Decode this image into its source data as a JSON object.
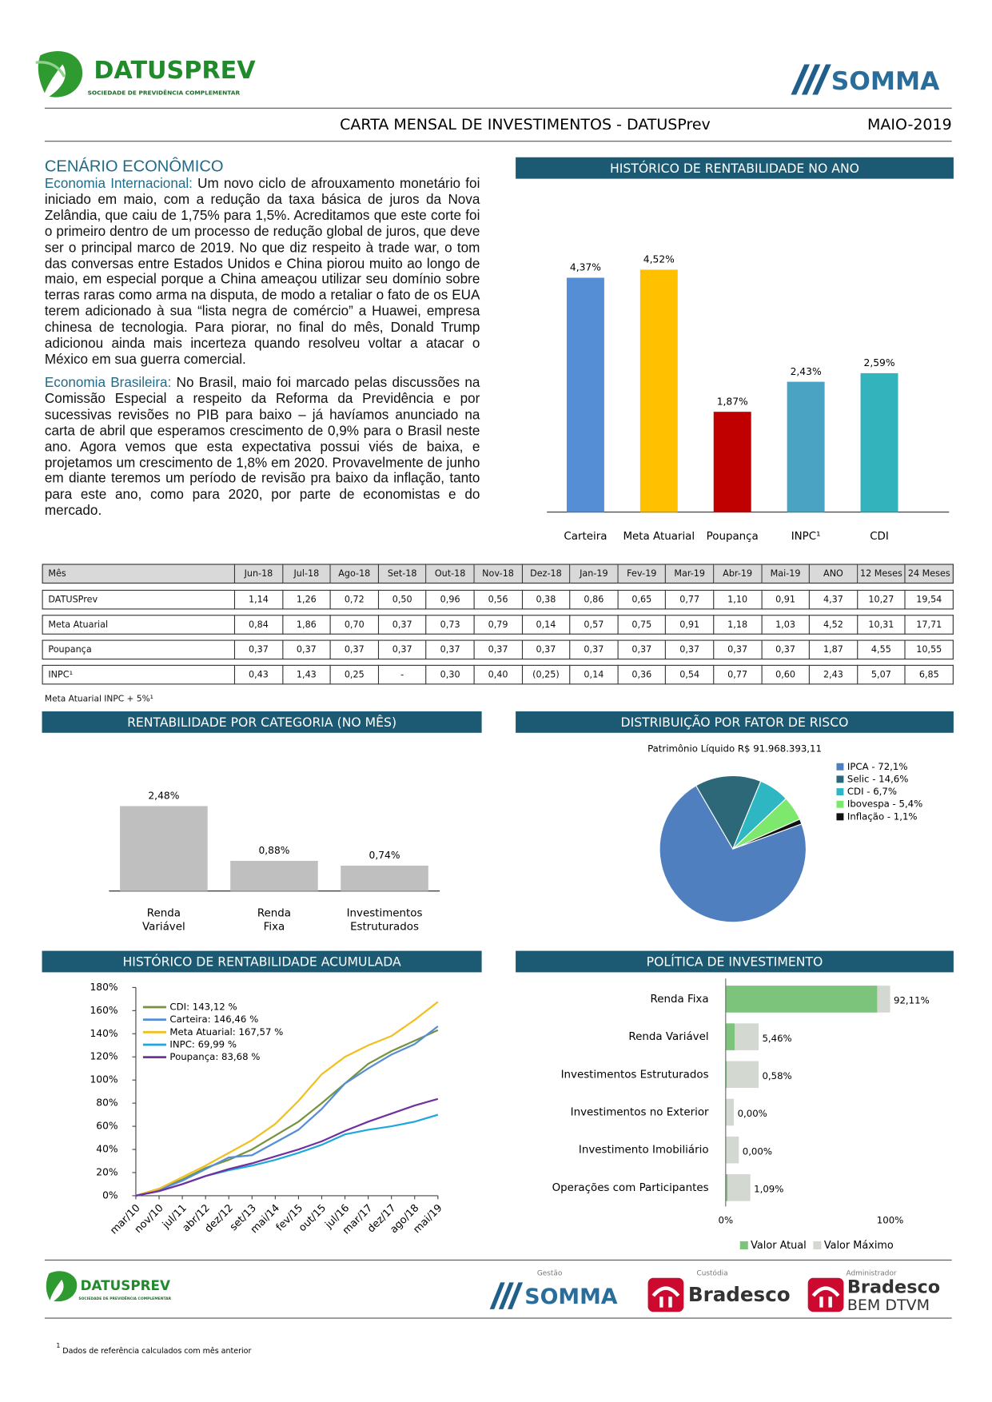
{
  "header": {
    "logo": "DATUSPREV",
    "logo_subtitle": "SOCIEDADE DE PREVIDÊNCIA COMPLEMENTAR",
    "partner": "SOMMA",
    "title": "CARTA MENSAL DE INVESTIMENTOS - DATUSPrev",
    "period": "MAIO-2019"
  },
  "scenario": {
    "title": "CENÁRIO ECONÔMICO",
    "paragraphs": [
      {
        "lead": "Economia Internacional:",
        "text": "Um novo ciclo de afrouxamento monetário foi iniciado em maio, com a redução da taxa básica de juros da Nova Zelândia, que caiu de 1,75% para 1,5%. Acreditamos que este corte foi o primeiro dentro de um processo de redução global de juros, que deve ser o principal marco de 2019. No que diz respeito à trade war, o tom das conversas entre Estados Unidos e China piorou muito ao longo de maio, em especial porque a China ameaçou utilizar seu domínio sobre terras raras como arma na disputa, de modo a retaliar o fato de os EUA terem adicionado à sua “lista negra de comércio” a Huawei, empresa chinesa de tecnologia. Para piorar, no final do mês, Donald Trump adicionou ainda mais incerteza quando resolveu voltar a atacar o México em sua guerra comercial."
      },
      {
        "lead": "Economia Brasileira:",
        "text": "No Brasil, maio foi marcado pelas discussões na Comissão Especial a respeito da Reforma da Previdência e por sucessivas revisões no PIB para baixo – já havíamos anunciado na carta de abril que esperamos crescimento de 0,9% para o Brasil neste ano. Agora vemos que esta expectativa possui viés de baixa, e projetamos um crescimento de 1,8% em 2020. Provavelmente de junho em diante teremos um período de revisão pra baixo da inflação, tanto para este ano, como para 2020, por parte de economistas e do mercado."
      }
    ]
  },
  "chart_data": [
    {
      "type": "bar",
      "title": "HISTÓRICO DE RENTABILIDADE NO ANO",
      "categories": [
        "Carteira",
        "Meta Atuarial",
        "Poupança",
        "INPC¹",
        "CDI"
      ],
      "values": [
        4.37,
        4.52,
        1.87,
        2.43,
        2.59
      ],
      "value_labels": [
        "4,37%",
        "4,52%",
        "1,87%",
        "2,43%",
        "2,59%"
      ],
      "colors": [
        "#558ed5",
        "#ffc000",
        "#c00000",
        "#4aa3c3",
        "#33b4bd"
      ]
    },
    {
      "type": "bar",
      "title": "RENTABILIDADE POR CATEGORIA (NO MÊS)",
      "categories": [
        "Renda Variável",
        "Renda Fixa",
        "Investimentos Estruturados"
      ],
      "values": [
        2.48,
        0.88,
        0.74
      ],
      "value_labels": [
        "2,48%",
        "0,88%",
        "0,74%"
      ],
      "color": "#bfbfbf"
    },
    {
      "type": "pie",
      "title": "DISTRIBUIÇÃO POR FATOR DE RISCO",
      "subtitle": "Patrimônio Líquido R$ 91.968.393,11",
      "labels": [
        "IPCA - 72,1%",
        "Selic - 14,6%",
        "CDI - 6,7%",
        "Ibovespa - 5,4%",
        "Inflação - 1,1%"
      ],
      "values": [
        72.1,
        14.6,
        6.7,
        5.4,
        1.1
      ],
      "colors": [
        "#4f7fbf",
        "#2d6879",
        "#2fb6c3",
        "#7ee86e",
        "#111111"
      ]
    },
    {
      "type": "line",
      "title": "HISTÓRICO DE RENTABILIDADE ACUMULADA",
      "categories": [
        "mar/10",
        "nov/10",
        "jul/11",
        "abr/12",
        "dez/12",
        "set/13",
        "mai/14",
        "fev/15",
        "out/15",
        "jul/16",
        "mar/17",
        "dez/17",
        "ago/18",
        "mai/19"
      ],
      "series": [
        {
          "name": "CDI: 143,12 %",
          "color": "#77933c",
          "values": [
            0,
            6,
            14,
            24,
            31,
            40,
            52,
            64,
            80,
            97,
            114,
            125,
            134,
            143.12
          ]
        },
        {
          "name": "Carteira: 146,46 %",
          "color": "#558ed5",
          "values": [
            0,
            5,
            13,
            23,
            33,
            35,
            46,
            57,
            75,
            97,
            110,
            122,
            131,
            146.46
          ]
        },
        {
          "name": "Meta Atuarial: 167,57 %",
          "color": "#f0c020",
          "values": [
            0,
            6,
            16,
            26,
            37,
            48,
            62,
            82,
            105,
            120,
            130,
            138,
            152,
            167.57
          ]
        },
        {
          "name": "INPC: 69,99 %",
          "color": "#1ca8dd",
          "values": [
            0,
            4,
            10,
            17,
            22,
            26,
            31,
            37,
            44,
            53,
            57,
            60,
            64,
            69.99
          ]
        },
        {
          "name": "Poupança: 83,68 %",
          "color": "#7030a0",
          "values": [
            0,
            4,
            10,
            17,
            23,
            28,
            34,
            40,
            47,
            56,
            64,
            71,
            78,
            83.68
          ]
        }
      ],
      "ylim": [
        0,
        180
      ],
      "yticks": [
        {
          "value": 0,
          "label": "0%"
        },
        {
          "value": 20,
          "label": "20%"
        },
        {
          "value": 40,
          "label": "40%"
        },
        {
          "value": 60,
          "label": "60%"
        },
        {
          "value": 80,
          "label": "80%"
        },
        {
          "value": 100,
          "label": "100%"
        },
        {
          "value": 120,
          "label": "120%"
        },
        {
          "value": 140,
          "label": "140%"
        },
        {
          "value": 160,
          "label": "160%"
        },
        {
          "value": 180,
          "label": "180%"
        }
      ]
    },
    {
      "type": "hbar",
      "title": "POLÍTICA DE INVESTIMENTO",
      "categories": [
        "Renda Fixa",
        "Renda Variável",
        "Investimentos Estruturados",
        "Investimentos no Exterior",
        "Investimento Imobiliário",
        "Operações com Participantes"
      ],
      "series": [
        {
          "name": "Valor Atual",
          "color": "#7cc47c",
          "values": [
            92.11,
            5.46,
            0.58,
            0,
            0,
            1.09
          ],
          "value_labels": [
            "92,11%",
            "5,46%",
            "0,58%",
            "0,00%",
            "0,00%",
            "1,09%"
          ]
        },
        {
          "name": "Valor Máximo",
          "color": "#d3d8d0",
          "values": [
            100,
            20,
            20,
            5,
            8,
            15
          ]
        }
      ],
      "xlim": [
        0,
        100
      ],
      "xticks": [
        {
          "value": 0,
          "label": "0%"
        },
        {
          "value": 100,
          "label": "100%"
        }
      ]
    }
  ],
  "table": {
    "header": [
      "Mês",
      "Jun-18",
      "Jul-18",
      "Ago-18",
      "Set-18",
      "Out-18",
      "Nov-18",
      "Dez-18",
      "Jan-19",
      "Fev-19",
      "Mar-19",
      "Abr-19",
      "Mai-19",
      "ANO",
      "12 Meses",
      "24 Meses"
    ],
    "rows": [
      [
        "DATUSPrev",
        "1,14",
        "1,26",
        "0,72",
        "0,50",
        "0,96",
        "0,56",
        "0,38",
        "0,86",
        "0,65",
        "0,77",
        "1,10",
        "0,91",
        "4,37",
        "10,27",
        "19,54"
      ],
      [
        "Meta Atuarial",
        "0,84",
        "1,86",
        "0,70",
        "0,37",
        "0,73",
        "0,79",
        "0,14",
        "0,57",
        "0,75",
        "0,91",
        "1,18",
        "1,03",
        "4,52",
        "10,31",
        "17,71"
      ],
      [
        "Poupança",
        "0,37",
        "0,37",
        "0,37",
        "0,37",
        "0,37",
        "0,37",
        "0,37",
        "0,37",
        "0,37",
        "0,37",
        "0,37",
        "0,37",
        "1,87",
        "4,55",
        "10,55"
      ],
      [
        "INPC¹",
        "0,43",
        "1,43",
        "0,25",
        "-",
        "0,30",
        "0,40",
        "(0,25)",
        "0,14",
        "0,36",
        "0,54",
        "0,77",
        "0,60",
        "2,43",
        "5,07",
        "6,85"
      ]
    ]
  },
  "table_note": "Meta Atuarial INPC + 5%¹",
  "footer": {
    "manager_caption": "Gestão",
    "manager": "SOMMA",
    "custodian_caption": "Custódia",
    "custodian": "Bradesco",
    "administrator_caption": "Administrador",
    "administrator": "Bradesco",
    "administrator_unit": "BEM DTVM"
  },
  "footnote": {
    "mark": "1",
    "text": "Dados de referência calculados com mês anterior"
  }
}
